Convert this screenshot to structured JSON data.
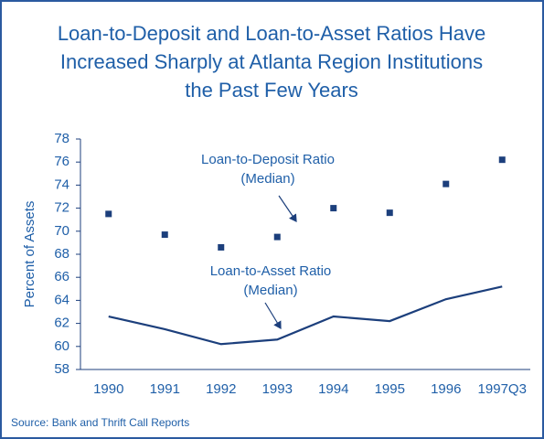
{
  "chart_data": {
    "type": "line",
    "title": [
      "Loan-to-Deposit and Loan-to-Asset Ratios Have",
      "Increased Sharply at Atlanta Region Institutions",
      "the Past Few Years"
    ],
    "y_label": "Percent of Assets",
    "source": "Source: Bank and Thrift Call Reports",
    "categories": [
      "1990",
      "1991",
      "1992",
      "1993",
      "1994",
      "1995",
      "1996",
      "1997Q3"
    ],
    "series": [
      {
        "name": [
          "Loan-to-Deposit Ratio",
          "(Median)"
        ],
        "style": "markers",
        "color": "#1c3f7c",
        "values": [
          71.5,
          69.7,
          68.6,
          69.5,
          72.0,
          71.6,
          74.1,
          76.2
        ]
      },
      {
        "name": [
          "Loan-to-Asset Ratio",
          "(Median)"
        ],
        "style": "line",
        "color": "#1c3f7c",
        "values": [
          62.6,
          61.5,
          60.2,
          60.6,
          62.6,
          62.2,
          64.1,
          65.2
        ]
      }
    ],
    "ylim": [
      58,
      78
    ],
    "yticks": [
      58,
      60,
      62,
      64,
      66,
      68,
      70,
      72,
      74,
      76,
      78
    ]
  }
}
